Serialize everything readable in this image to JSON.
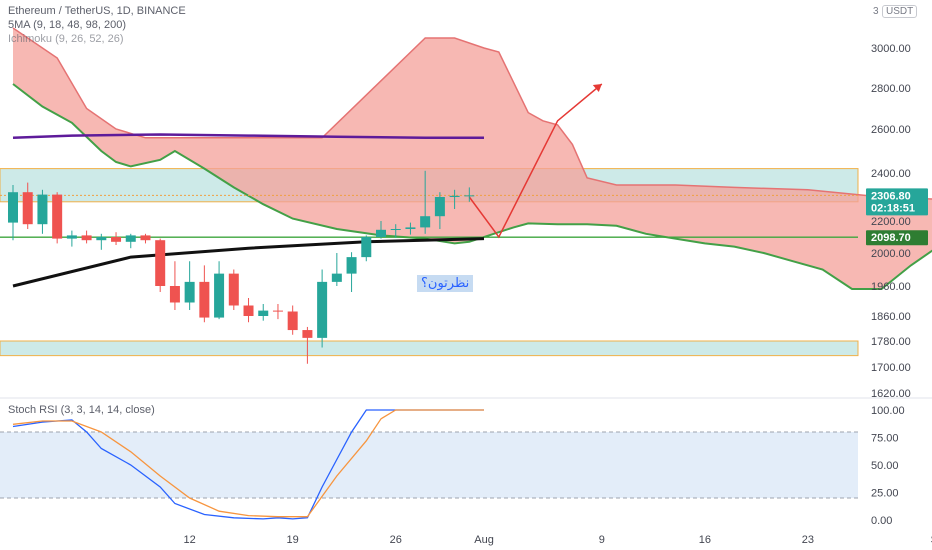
{
  "header": {
    "title": "Ethereum / TetherUS, 1D, BINANCE",
    "indicator_sma": "5MA (9, 18, 48, 98, 200)",
    "indicator_ichimoku": "Ichimoku (9, 26, 52, 26)",
    "currency": "USDT",
    "currency_prefix": "3"
  },
  "annotation": "نظرتون؟",
  "price_labels": {
    "last_price": "2306.80",
    "countdown": "02:18:51",
    "level": "2098.70"
  },
  "rsi_title": "Stoch RSI (3, 3, 14, 14, close)",
  "colors": {
    "up": "#26a69a",
    "down": "#ef5350",
    "cloud": "#f4a09a",
    "zone": "#b2dfdb",
    "zone_border": "#f0b049",
    "level_line": "#3ea63e",
    "sma200": "#5e1b9a"
  },
  "chart_data": [
    {
      "type": "candlestick",
      "symbol": "Ethereum / TetherUS",
      "timeframe": "1D",
      "exchange": "BINANCE",
      "y_ticks": [
        3000,
        2800,
        2600,
        2400,
        2200,
        2000,
        1960,
        1860,
        1780,
        1700,
        1620
      ],
      "x_ticks": [
        "12",
        "19",
        "26",
        "Aug",
        "9",
        "16",
        "23",
        "Sep"
      ],
      "x_tick_days": [
        12,
        19,
        26,
        32,
        40,
        47,
        54,
        63
      ],
      "candles": [
        {
          "day": 0,
          "o": 2190,
          "h": 2350,
          "l": 2080,
          "c": 2320
        },
        {
          "day": 1,
          "o": 2320,
          "h": 2360,
          "l": 2150,
          "c": 2180
        },
        {
          "day": 2,
          "o": 2180,
          "h": 2330,
          "l": 2120,
          "c": 2310
        },
        {
          "day": 3,
          "o": 2310,
          "h": 2320,
          "l": 2060,
          "c": 2090
        },
        {
          "day": 4,
          "o": 2090,
          "h": 2140,
          "l": 2040,
          "c": 2110
        },
        {
          "day": 5,
          "o": 2110,
          "h": 2140,
          "l": 2060,
          "c": 2080
        },
        {
          "day": 6,
          "o": 2080,
          "h": 2120,
          "l": 2020,
          "c": 2100
        },
        {
          "day": 7,
          "o": 2100,
          "h": 2130,
          "l": 2050,
          "c": 2070
        },
        {
          "day": 8,
          "o": 2070,
          "h": 2120,
          "l": 2030,
          "c": 2110
        },
        {
          "day": 9,
          "o": 2110,
          "h": 2120,
          "l": 2060,
          "c": 2080
        },
        {
          "day": 10,
          "o": 2080,
          "h": 2090,
          "l": 1940,
          "c": 1960
        },
        {
          "day": 11,
          "o": 1960,
          "h": 1990,
          "l": 1880,
          "c": 1905
        },
        {
          "day": 12,
          "o": 1905,
          "h": 1990,
          "l": 1880,
          "c": 1965
        },
        {
          "day": 13,
          "o": 1965,
          "h": 1985,
          "l": 1840,
          "c": 1855
        },
        {
          "day": 14,
          "o": 1855,
          "h": 1990,
          "l": 1850,
          "c": 1975
        },
        {
          "day": 15,
          "o": 1975,
          "h": 1980,
          "l": 1880,
          "c": 1895
        },
        {
          "day": 16,
          "o": 1895,
          "h": 1920,
          "l": 1840,
          "c": 1860
        },
        {
          "day": 17,
          "o": 1860,
          "h": 1900,
          "l": 1845,
          "c": 1878
        },
        {
          "day": 18,
          "o": 1878,
          "h": 1900,
          "l": 1850,
          "c": 1875
        },
        {
          "day": 19,
          "o": 1875,
          "h": 1895,
          "l": 1800,
          "c": 1815
        },
        {
          "day": 20,
          "o": 1815,
          "h": 1825,
          "l": 1710,
          "c": 1790
        },
        {
          "day": 21,
          "o": 1790,
          "h": 1980,
          "l": 1760,
          "c": 1965
        },
        {
          "day": 22,
          "o": 1965,
          "h": 2000,
          "l": 1960,
          "c": 1975
        },
        {
          "day": 23,
          "o": 1975,
          "h": 2005,
          "l": 1940,
          "c": 1995
        },
        {
          "day": 24,
          "o": 1995,
          "h": 2110,
          "l": 1990,
          "c": 2100
        },
        {
          "day": 25,
          "o": 2100,
          "h": 2200,
          "l": 2090,
          "c": 2145
        },
        {
          "day": 26,
          "o": 2145,
          "h": 2180,
          "l": 2095,
          "c": 2150
        },
        {
          "day": 27,
          "o": 2150,
          "h": 2190,
          "l": 2115,
          "c": 2160
        },
        {
          "day": 28,
          "o": 2160,
          "h": 2410,
          "l": 2120,
          "c": 2220
        },
        {
          "day": 29,
          "o": 2220,
          "h": 2320,
          "l": 2150,
          "c": 2300
        },
        {
          "day": 30,
          "o": 2300,
          "h": 2330,
          "l": 2250,
          "c": 2305
        },
        {
          "day": 31,
          "o": 2305,
          "h": 2340,
          "l": 2280,
          "c": 2306.8
        }
      ],
      "cloud_top": [
        [
          0,
          3100
        ],
        [
          3,
          2950
        ],
        [
          5,
          2700
        ],
        [
          7,
          2600
        ],
        [
          9,
          2560
        ],
        [
          11,
          2560
        ],
        [
          14,
          2560
        ],
        [
          21,
          2560
        ],
        [
          28,
          3050
        ],
        [
          30,
          3050
        ],
        [
          32,
          3000
        ],
        [
          33,
          2980
        ],
        [
          35,
          2680
        ],
        [
          36,
          2640
        ],
        [
          37,
          2620
        ],
        [
          38,
          2530
        ],
        [
          39,
          2380
        ],
        [
          41,
          2350
        ],
        [
          45,
          2350
        ],
        [
          49,
          2340
        ],
        [
          54,
          2330
        ],
        [
          59,
          2300
        ],
        [
          63,
          2290
        ],
        [
          65,
          2180
        ]
      ],
      "cloud_bottom": [
        [
          0,
          2820
        ],
        [
          2,
          2710
        ],
        [
          4,
          2630
        ],
        [
          6,
          2500
        ],
        [
          7,
          2450
        ],
        [
          8,
          2430
        ],
        [
          10,
          2460
        ],
        [
          11,
          2500
        ],
        [
          13,
          2420
        ],
        [
          15,
          2340
        ],
        [
          17,
          2270
        ],
        [
          19,
          2210
        ],
        [
          22,
          2150
        ],
        [
          25,
          2110
        ],
        [
          28,
          2090
        ],
        [
          30,
          2060
        ],
        [
          31,
          2070
        ],
        [
          33,
          2130
        ],
        [
          34,
          2160
        ],
        [
          35,
          2185
        ],
        [
          37,
          2180
        ],
        [
          39,
          2180
        ],
        [
          41,
          2170
        ],
        [
          43,
          2120
        ],
        [
          45,
          2090
        ],
        [
          47,
          2060
        ],
        [
          49,
          2040
        ],
        [
          51,
          2000
        ],
        [
          53,
          1990
        ],
        [
          55,
          1980
        ],
        [
          57,
          1950
        ],
        [
          59,
          1950
        ],
        [
          61,
          1985
        ],
        [
          63,
          2050
        ],
        [
          65,
          2060
        ]
      ],
      "sma200": [
        [
          0,
          2560
        ],
        [
          4,
          2570
        ],
        [
          10,
          2575
        ],
        [
          16,
          2570
        ],
        [
          22,
          2565
        ],
        [
          28,
          2560
        ],
        [
          32,
          2560
        ]
      ],
      "support_line": [
        [
          0,
          1960
        ],
        [
          8,
          1995
        ],
        [
          16,
          2030
        ],
        [
          24,
          2070
        ],
        [
          32,
          2090
        ]
      ],
      "zones": [
        {
          "low": 2280,
          "high": 2420,
          "from": 0,
          "to": 80
        },
        {
          "low": 1735,
          "high": 1780,
          "from": 0,
          "to": 66
        }
      ],
      "level": 2098.7,
      "last_price": 2306.8,
      "projection": [
        [
          31,
          2300
        ],
        [
          33,
          2100
        ],
        [
          37,
          2640
        ],
        [
          40,
          2820
        ]
      ]
    },
    {
      "type": "line",
      "title": "Stoch RSI (3, 3, 14, 14, close)",
      "ylim": [
        0,
        100
      ],
      "y_ticks": [
        100,
        75,
        50,
        25,
        0
      ],
      "bands": [
        20,
        80
      ],
      "series": [
        {
          "color": "#2962ff",
          "values": [
            [
              0,
              85
            ],
            [
              2,
              89
            ],
            [
              4,
              91
            ],
            [
              5,
              80
            ],
            [
              6,
              65
            ],
            [
              8,
              50
            ],
            [
              10,
              30
            ],
            [
              11,
              15
            ],
            [
              13,
              5
            ],
            [
              15,
              2
            ],
            [
              17,
              1
            ],
            [
              18,
              2
            ],
            [
              19,
              1
            ],
            [
              20,
              2
            ],
            [
              21,
              30
            ],
            [
              22,
              55
            ],
            [
              23,
              80
            ],
            [
              24,
              100
            ],
            [
              32,
              100
            ]
          ]
        },
        {
          "color": "#f7953f",
          "values": [
            [
              0,
              87
            ],
            [
              2,
              90
            ],
            [
              4,
              90
            ],
            [
              6,
              80
            ],
            [
              8,
              62
            ],
            [
              10,
              40
            ],
            [
              12,
              20
            ],
            [
              14,
              8
            ],
            [
              16,
              4
            ],
            [
              18,
              3
            ],
            [
              20,
              3
            ],
            [
              22,
              40
            ],
            [
              24,
              72
            ],
            [
              25,
              92
            ],
            [
              26,
              100
            ],
            [
              32,
              100
            ]
          ]
        }
      ]
    }
  ]
}
